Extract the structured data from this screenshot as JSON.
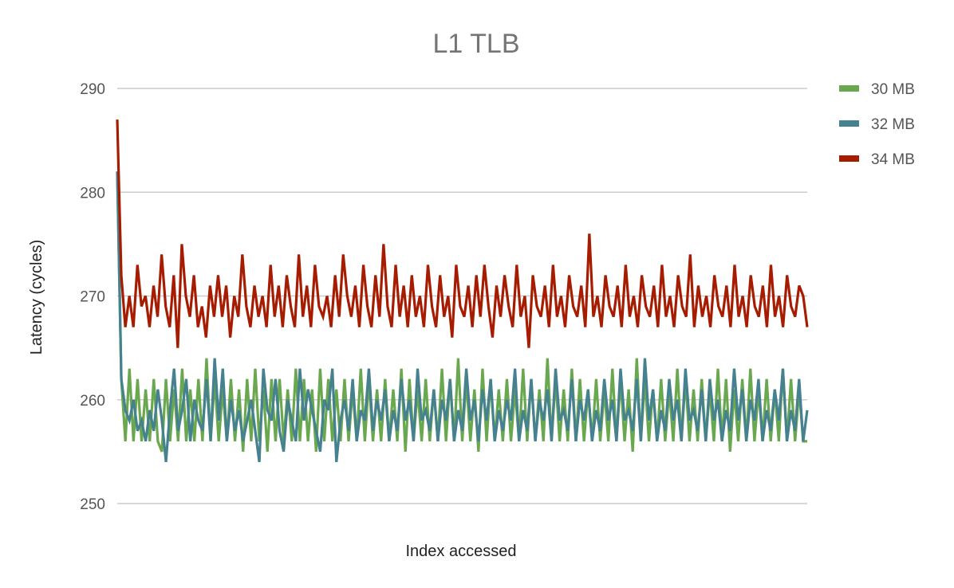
{
  "chart_data": {
    "type": "line",
    "title": "L1 TLB",
    "xlabel": "Index accessed",
    "ylabel": "Latency (cycles)",
    "ylim": [
      250,
      290
    ],
    "yticks": [
      250,
      260,
      270,
      280,
      290
    ],
    "yticklabels": [
      "250",
      "260",
      "270",
      "280",
      "290"
    ],
    "grid": true,
    "legend_position": "right",
    "series": [
      {
        "name": "30 MB",
        "color": "#6aa84f",
        "values": [
          282,
          262,
          256,
          263,
          256,
          262,
          256,
          261,
          256,
          262,
          256,
          255,
          262,
          256,
          261,
          256,
          263,
          256,
          261,
          256,
          262,
          256,
          264,
          256,
          262,
          256,
          261,
          256,
          262,
          256,
          261,
          255,
          262,
          256,
          263,
          256,
          261,
          255,
          262,
          256,
          262,
          256,
          261,
          256,
          263,
          256,
          262,
          256,
          261,
          255,
          263,
          256,
          262,
          256,
          261,
          256,
          262,
          256,
          261,
          256,
          263,
          256,
          262,
          256,
          261,
          256,
          262,
          256,
          261,
          256,
          263,
          255,
          262,
          256,
          261,
          256,
          262,
          256,
          261,
          256,
          263,
          256,
          262,
          256,
          264,
          256,
          262,
          256,
          261,
          255,
          263,
          256,
          262,
          256,
          261,
          256,
          262,
          256,
          261,
          256,
          263,
          256,
          262,
          256,
          261,
          256,
          264,
          256,
          262,
          256,
          261,
          256,
          263,
          256,
          262,
          256,
          261,
          256,
          262,
          256,
          261,
          256,
          263,
          256,
          262,
          256,
          261,
          255,
          264,
          256,
          262,
          256,
          261,
          256,
          262,
          256,
          261,
          256,
          263,
          256,
          262,
          256,
          261,
          256,
          262,
          256,
          261,
          256,
          263,
          256,
          262,
          255,
          261,
          256,
          262,
          256,
          263,
          256,
          261,
          256,
          262,
          256,
          261,
          256,
          263,
          256,
          262,
          256,
          261,
          256,
          256
        ]
      },
      {
        "name": "32 MB",
        "color": "#45818e",
        "values": [
          282,
          262,
          259,
          258,
          260,
          257,
          258,
          256,
          259,
          257,
          261,
          258,
          254,
          259,
          263,
          257,
          259,
          262,
          256,
          260,
          258,
          257,
          262,
          256,
          264,
          258,
          263,
          256,
          260,
          257,
          259,
          256,
          258,
          260,
          257,
          254,
          263,
          259,
          258,
          262,
          257,
          255,
          260,
          258,
          256,
          263,
          258,
          261,
          259,
          257,
          255,
          260,
          259,
          263,
          254,
          258,
          260,
          257,
          262,
          256,
          259,
          258,
          263,
          257,
          260,
          258,
          261,
          256,
          259,
          257,
          262,
          258,
          260,
          256,
          263,
          258,
          259,
          257,
          261,
          256,
          260,
          258,
          262,
          256,
          259,
          257,
          263,
          258,
          260,
          256,
          261,
          258,
          262,
          256,
          259,
          257,
          260,
          258,
          263,
          256,
          259,
          257,
          262,
          256,
          260,
          258,
          261,
          256,
          263,
          258,
          259,
          257,
          262,
          256,
          260,
          258,
          261,
          256,
          259,
          257,
          262,
          258,
          260,
          256,
          263,
          258,
          259,
          257,
          262,
          256,
          264,
          258,
          261,
          256,
          259,
          257,
          262,
          258,
          260,
          256,
          263,
          258,
          259,
          257,
          261,
          256,
          262,
          258,
          260,
          256,
          259,
          257,
          263,
          258,
          261,
          256,
          260,
          258,
          262,
          256,
          259,
          257,
          261,
          258,
          263,
          256,
          259,
          257,
          262,
          256,
          259
        ]
      },
      {
        "name": "34 MB",
        "color": "#a61c00",
        "values": [
          287,
          272,
          267,
          270,
          267,
          273,
          269,
          270,
          267,
          271,
          268,
          274,
          269,
          267,
          272,
          265,
          275,
          270,
          268,
          272,
          267,
          269,
          266,
          271,
          268,
          272,
          268,
          271,
          266,
          270,
          268,
          274,
          269,
          267,
          271,
          268,
          270,
          267,
          273,
          268,
          271,
          267,
          272,
          269,
          267,
          274,
          268,
          271,
          267,
          273,
          269,
          268,
          270,
          267,
          272,
          268,
          274,
          270,
          268,
          271,
          267,
          273,
          269,
          267,
          272,
          268,
          275,
          269,
          267,
          273,
          268,
          271,
          267,
          272,
          268,
          270,
          267,
          273,
          269,
          267,
          272,
          268,
          270,
          266,
          273,
          269,
          268,
          271,
          267,
          272,
          268,
          273,
          269,
          266,
          271,
          268,
          272,
          269,
          267,
          273,
          268,
          270,
          265,
          272,
          269,
          268,
          271,
          267,
          273,
          268,
          270,
          267,
          272,
          269,
          268,
          271,
          267,
          276,
          268,
          270,
          267,
          272,
          269,
          268,
          271,
          267,
          273,
          268,
          270,
          267,
          272,
          269,
          268,
          271,
          267,
          273,
          268,
          270,
          267,
          272,
          269,
          268,
          274,
          267,
          271,
          268,
          270,
          267,
          272,
          269,
          268,
          271,
          267,
          273,
          268,
          270,
          267,
          272,
          269,
          268,
          271,
          267,
          273,
          268,
          270,
          267,
          272,
          269,
          268,
          271,
          270,
          267
        ]
      }
    ]
  }
}
